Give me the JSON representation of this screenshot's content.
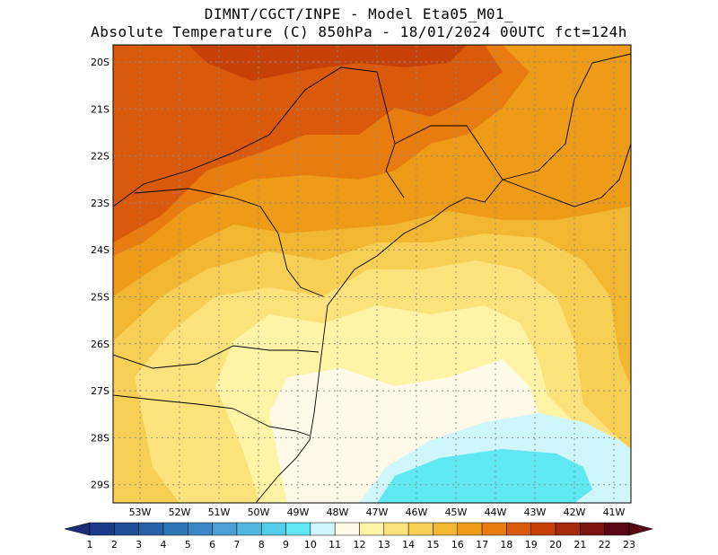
{
  "header": {
    "line1": "DIMNT/CGCT/INPE -  Model Eta05_M01_",
    "line2": "Absolute Temperature (C) 850hPa -  18/01/2024 00UTC fct=124h"
  },
  "axes": {
    "lat_labels": [
      "20S",
      "21S",
      "22S",
      "23S",
      "24S",
      "25S",
      "26S",
      "27S",
      "28S",
      "29S"
    ],
    "lon_labels": [
      "53W",
      "52W",
      "51W",
      "50W",
      "49W",
      "48W",
      "47W",
      "46W",
      "45W",
      "44W",
      "43W",
      "42W",
      "41W"
    ]
  },
  "colorbar": {
    "labels": [
      "1",
      "2",
      "3",
      "4",
      "5",
      "6",
      "7",
      "8",
      "9",
      "10",
      "11",
      "12",
      "13",
      "14",
      "15",
      "16",
      "17",
      "18",
      "19",
      "20",
      "21",
      "22",
      "23"
    ],
    "colors": [
      "#1b3a8a",
      "#1f4f9a",
      "#2660a8",
      "#2f74b6",
      "#3a87c4",
      "#4aa0d3",
      "#52b6de",
      "#54cbe8",
      "#5fe8f2",
      "#cff6fb",
      "#fff9e8",
      "#fff3a6",
      "#fce27a",
      "#f8cf55",
      "#f2b731",
      "#ee9c18",
      "#e97c0e",
      "#d85a0a",
      "#c64108",
      "#a52a0c",
      "#7c1510"
    ],
    "low_end_color": "#1b2f78",
    "high_end_color": "#5a0816"
  },
  "field_colors": {
    "c12": "#fff3a6",
    "c13": "#fce27a",
    "c14": "#f8cf55",
    "c15": "#f2b731",
    "c16": "#ee9c18",
    "c17": "#e97c0e",
    "c18": "#d85a0a",
    "c19": "#c64108",
    "c11": "#fff9e8",
    "c10": "#cff6fb",
    "c9": "#5fe8f2"
  }
}
